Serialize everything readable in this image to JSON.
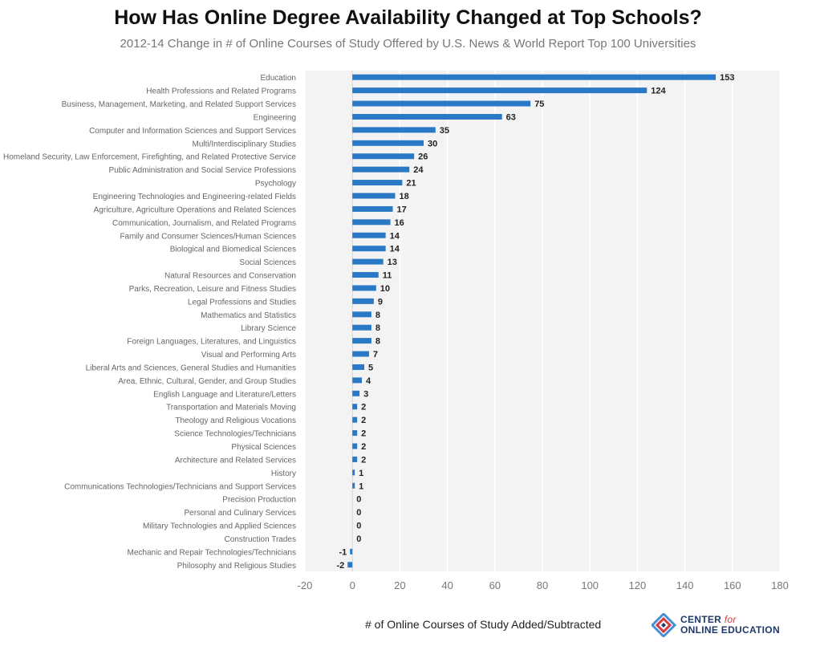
{
  "title": "How Has Online Degree Availability Changed at Top Schools?",
  "subtitle": "2012-14 Change in # of Online Courses of Study Offered by U.S. News & World Report Top 100 Universities",
  "logo": {
    "line1": "CENTER",
    "line1_suffix": "for",
    "line2": "ONLINE EDUCATION",
    "colors": {
      "red": "#d23c3c",
      "navy": "#1e3a6a",
      "blue": "#4a90d9"
    }
  },
  "colors": {
    "bar": "#2979c7",
    "plot_bg": "#f3f3f3",
    "grid": "#ffffff",
    "label": "#666666",
    "value": "#222222"
  },
  "chart_data": {
    "type": "bar",
    "orientation": "horizontal",
    "title": "How Has Online Degree Availability Changed at Top Schools?",
    "subtitle": "2012-14 Change in # of Online Courses of Study Offered by U.S. News & World Report Top 100 Universities",
    "xlabel": "# of Online Courses of Study Added/Subtracted",
    "ylabel": "",
    "xlim": [
      -20,
      180
    ],
    "xticks": [
      -20,
      0,
      20,
      40,
      60,
      80,
      100,
      120,
      140,
      160,
      180
    ],
    "grid": true,
    "categories": [
      "Education",
      "Health Professions and Related Programs",
      "Business, Management, Marketing, and Related Support Services",
      "Engineering",
      "Computer and Information Sciences and Support Services",
      "Multi/Interdisciplinary Studies",
      "Homeland Security, Law Enforcement, Firefighting, and Related Protective Service",
      "Public Administration and Social Service Professions",
      "Psychology",
      "Engineering Technologies and Engineering-related Fields",
      "Agriculture, Agriculture Operations and Related Sciences",
      "Communication, Journalism, and Related Programs",
      "Family and Consumer Sciences/Human Sciences",
      "Biological and Biomedical Sciences",
      "Social Sciences",
      "Natural Resources and Conservation",
      "Parks, Recreation, Leisure and Fitness Studies",
      "Legal Professions and Studies",
      "Mathematics and Statistics",
      "Library Science",
      "Foreign Languages, Literatures, and Linguistics",
      "Visual and Performing Arts",
      "Liberal Arts and Sciences, General Studies and Humanities",
      "Area, Ethnic, Cultural, Gender, and Group Studies",
      "English Language and Literature/Letters",
      "Transportation and Materials Moving",
      "Theology and Religious Vocations",
      "Science Technologies/Technicians",
      "Physical Sciences",
      "Architecture and Related Services",
      "History",
      "Communications Technologies/Technicians and Support Services",
      "Precision Production",
      "Personal and Culinary Services",
      "Military Technologies and Applied Sciences",
      "Construction Trades",
      "Mechanic and Repair Technologies/Technicians",
      "Philosophy and Religious Studies"
    ],
    "values": [
      153,
      124,
      75,
      63,
      35,
      30,
      26,
      24,
      21,
      18,
      17,
      16,
      14,
      14,
      13,
      11,
      10,
      9,
      8,
      8,
      8,
      7,
      5,
      4,
      3,
      2,
      2,
      2,
      2,
      2,
      1,
      1,
      0,
      0,
      0,
      0,
      -1,
      -2
    ]
  }
}
